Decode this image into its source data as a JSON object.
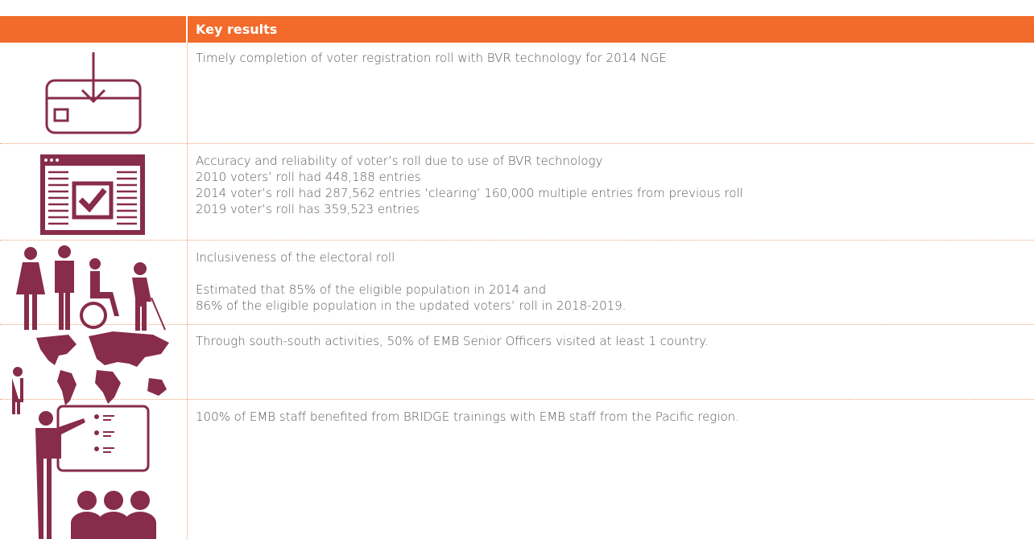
{
  "header": {
    "title": "Key results"
  },
  "rows": [
    {
      "paragraphs": [
        [
          "Timely completion of voter registration roll with BVR technology for 2014 NGE"
        ]
      ]
    },
    {
      "paragraphs": [
        [
          "Accuracy and reliability of voter’s roll due to use of BVR technology",
          "2010 voters’ roll had 448,188 entries",
          "2014 voter’s roll had 287,562 entries ‘clearing’ 160,000 multiple entries from previous roll",
          "2019 voter’s roll has 359,523 entries"
        ]
      ]
    },
    {
      "paragraphs": [
        [
          "Inclusiveness of the electoral roll"
        ],
        [
          "Estimated that 85% of the eligible population in 2014 and",
          "86% of the eligible population in the updated voters’ roll in 2018-2019."
        ]
      ]
    },
    {
      "paragraphs": [
        [
          "Through south-south activities, 50% of EMB Senior Officers visited at least 1 country."
        ]
      ]
    },
    {
      "paragraphs": [
        [
          "100% of EMB staff benefited from BRIDGE trainings with EMB staff from the Pacific region."
        ]
      ]
    }
  ]
}
